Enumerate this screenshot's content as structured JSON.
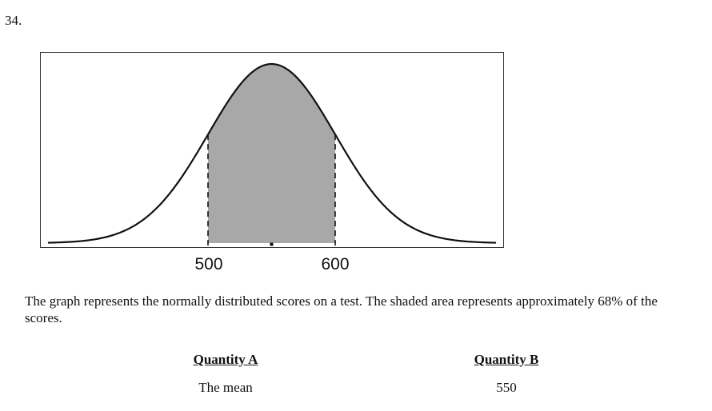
{
  "question": {
    "number": "34."
  },
  "figure": {
    "axis_labels": [
      "500",
      "600"
    ],
    "curve": "normal-distribution",
    "shaded_interval": [
      500,
      600
    ],
    "mean_tick": true,
    "colors": {
      "curve": "#111111",
      "shade": "#a8a8a8",
      "frame": "#333333"
    }
  },
  "prompt": {
    "text": "The graph represents the normally distributed scores on a test. The shaded area represents approximately 68% of the scores."
  },
  "quantities": {
    "a": {
      "heading": "Quantity A",
      "value": "The mean"
    },
    "b": {
      "heading": "Quantity B",
      "value": "550"
    }
  }
}
